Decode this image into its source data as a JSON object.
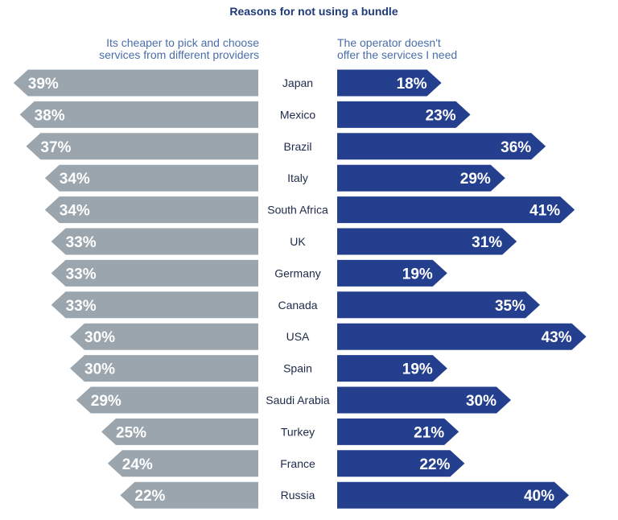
{
  "chart_data": {
    "type": "bar",
    "title": "Reasons for not using a bundle",
    "series": [
      {
        "name": "Its cheaper to pick and choose services from different providers",
        "color": "#9aa5ae",
        "values": [
          39,
          38,
          37,
          34,
          34,
          33,
          33,
          33,
          30,
          30,
          29,
          25,
          24,
          22
        ]
      },
      {
        "name": "The operator doesn't offer the services I need",
        "color": "#233f8e",
        "values": [
          18,
          23,
          36,
          29,
          41,
          31,
          19,
          35,
          43,
          19,
          30,
          21,
          22,
          40
        ]
      }
    ],
    "categories": [
      "Japan",
      "Mexico",
      "Brazil",
      "Italy",
      "South Africa",
      "UK",
      "Germany",
      "Canada",
      "USA",
      "Spain",
      "Saudi Arabia",
      "Turkey",
      "France",
      "Russia"
    ],
    "unit": "%"
  },
  "header": {
    "left_line1": "Its cheaper to pick and choose",
    "left_line2": "services from different providers",
    "right_line1": "The operator doesn't",
    "right_line2": "offer the services I need"
  }
}
